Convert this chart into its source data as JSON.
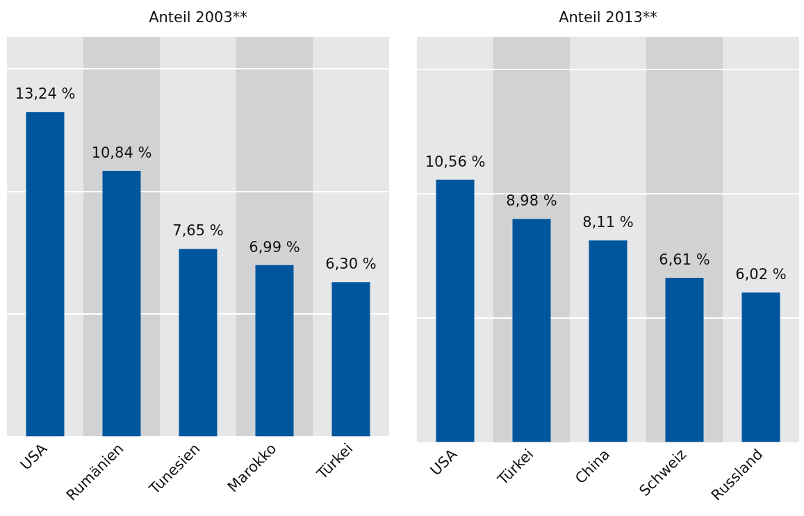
{
  "chart_data": [
    {
      "type": "bar",
      "title": "Anteil 2003**",
      "categories": [
        "USA",
        "Rumänien",
        "Tunesien",
        "Marokko",
        "Türkei"
      ],
      "values": [
        13.24,
        10.84,
        7.65,
        6.99,
        6.3
      ],
      "value_labels": [
        "13,24 %",
        "10,84 %",
        "7,65 %",
        "6,99 %",
        "6,30 %"
      ],
      "color": "#00569d",
      "ylim": [
        0,
        16.3
      ],
      "yticks": [
        {
          "value": 5,
          "label": null
        },
        {
          "value": 10,
          "label": null
        },
        {
          "value": 15,
          "label": null
        }
      ],
      "grid": "y",
      "tick_labels": "x",
      "legend": false
    },
    {
      "type": "bar",
      "title": "Anteil 2013**",
      "categories": [
        "USA",
        "Türkei",
        "China",
        "Schweiz",
        "Russland"
      ],
      "values": [
        10.56,
        8.98,
        8.11,
        6.61,
        6.02
      ],
      "value_labels": [
        "10,56 %",
        "8,98 %",
        "8,11 %",
        "6,61 %",
        "6,02 %"
      ],
      "color": "#00569d",
      "ylim": [
        0,
        16.3
      ],
      "yticks": [
        {
          "value": 5,
          "label": null
        },
        {
          "value": 10,
          "label": null
        },
        {
          "value": 15,
          "label": null
        }
      ],
      "grid": "y",
      "tick_labels": "x",
      "legend": false
    }
  ]
}
